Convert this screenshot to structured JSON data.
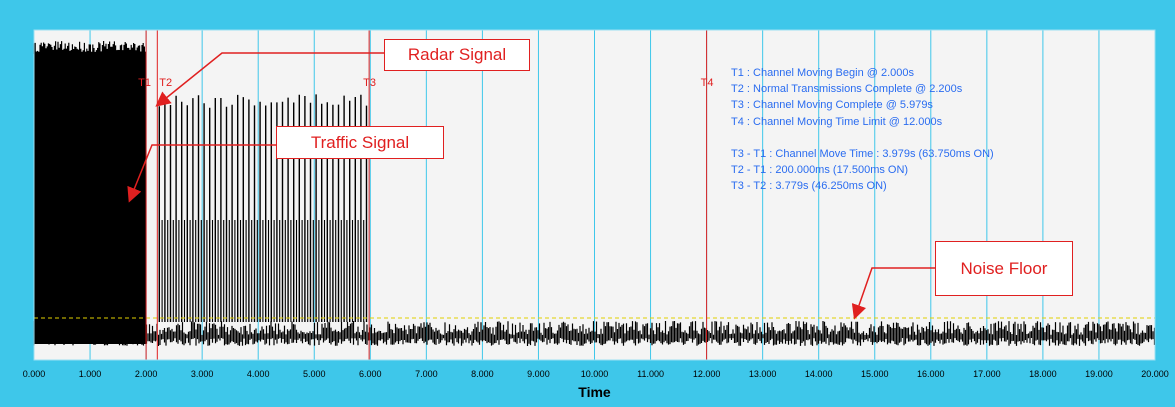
{
  "chart_data": {
    "type": "line",
    "xlabel": "Time",
    "ylabel": "",
    "xlim": [
      0,
      20
    ],
    "x_ticks": [
      "0.000",
      "1.000",
      "2.000",
      "3.000",
      "4.000",
      "5.000",
      "6.000",
      "7.000",
      "8.000",
      "9.000",
      "10.000",
      "11.000",
      "12.000",
      "13.000",
      "14.000",
      "15.000",
      "16.000",
      "17.000",
      "18.000",
      "19.000",
      "20.000"
    ],
    "grid": true,
    "markers": [
      {
        "label": "T1",
        "time": 2.0
      },
      {
        "label": "T2",
        "time": 2.2
      },
      {
        "label": "T3",
        "time": 5.979
      },
      {
        "label": "T4",
        "time": 12.0
      }
    ],
    "signal_segments": [
      {
        "kind": "traffic_solid",
        "x_start": 0.0,
        "x_end": 2.0
      },
      {
        "kind": "radar_pulses",
        "x_start": 2.2,
        "x_end": 5.979
      }
    ],
    "annotations": [
      "T1 : Channel Moving Begin @ 2.000s",
      "T2 : Normal Transmissions Complete @ 2.200s",
      "T3 : Channel Moving Complete @ 5.979s",
      "T4 : Channel Moving Time Limit @ 12.000s",
      "T3 - T1 : Channel Move Time : 3.979s (63.750ms ON)",
      "T2 - T1 : 200.000ms (17.500ms ON)",
      "T3 - T2 : 3.779s (46.250ms ON)"
    ],
    "callouts": {
      "radar": "Radar Signal",
      "traffic": "Traffic Signal",
      "noise": "Noise Floor"
    }
  },
  "colors": {
    "background": "#3ec7ea",
    "plot_area": "#f4f4f4",
    "grid": "#3ec7ea",
    "marker": "#e02020",
    "signal": "#000000",
    "threshold": "#e0d000",
    "annotation_text": "#2a6cf0",
    "callout": "#e02020"
  }
}
